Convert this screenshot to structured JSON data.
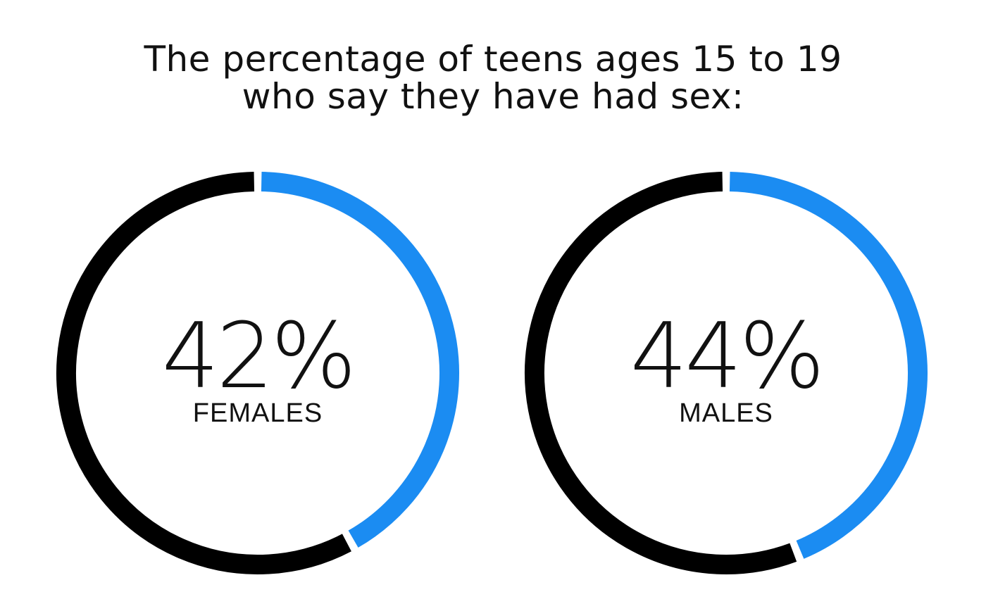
{
  "title": {
    "line1": "The percentage of teens ages 15 to 19",
    "line2": "who say they have had sex:"
  },
  "colors": {
    "accent": "#1b8cf2",
    "remainder": "#000000",
    "text": "#111111",
    "background": "#ffffff"
  },
  "chart_data": [
    {
      "type": "pie",
      "variant": "donut",
      "value": 42,
      "value_label": "42%",
      "label": "FEMALES"
    },
    {
      "type": "pie",
      "variant": "donut",
      "value": 44,
      "value_label": "44%",
      "label": "MALES"
    }
  ]
}
